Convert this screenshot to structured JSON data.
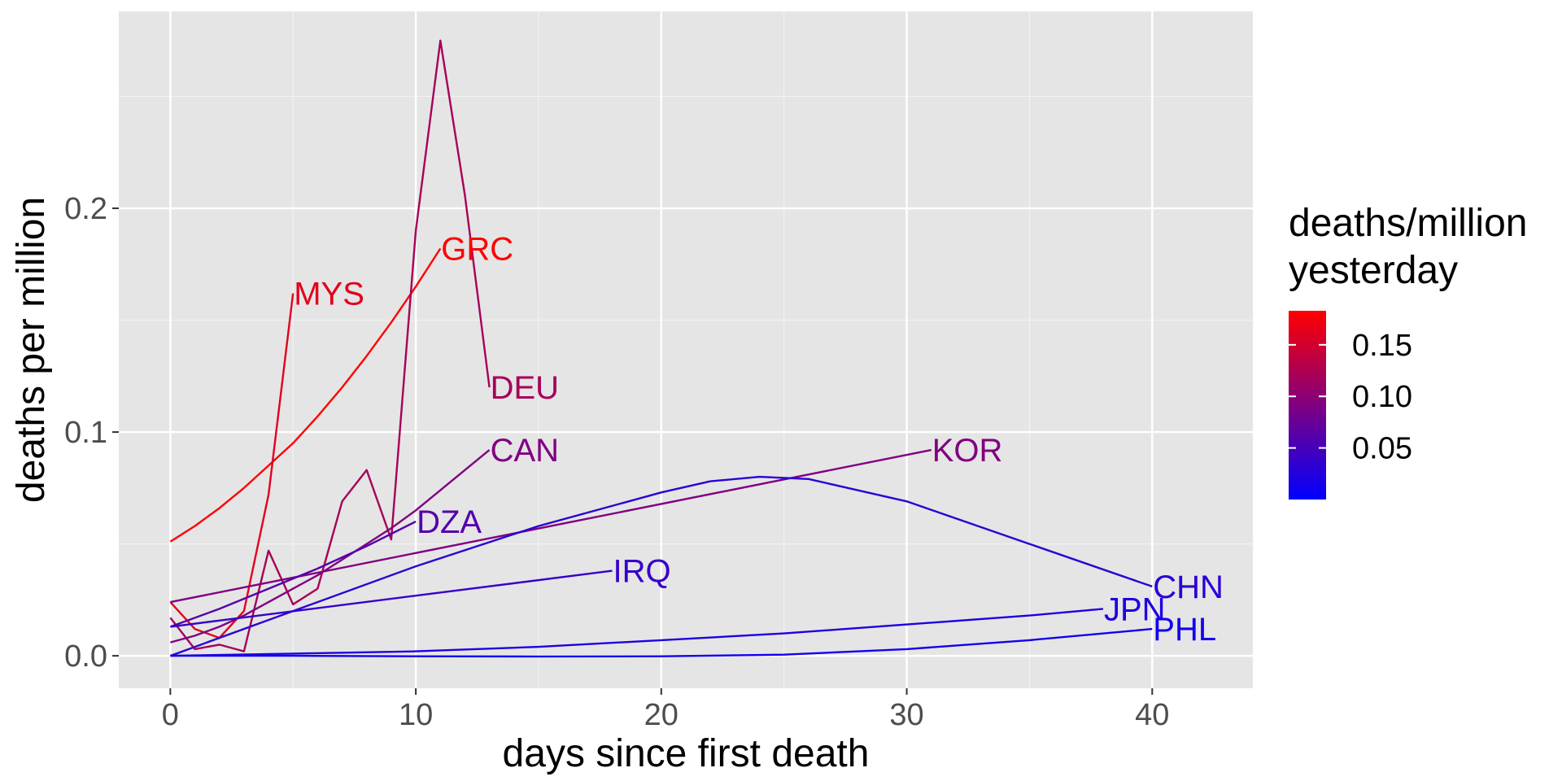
{
  "chart_data": {
    "type": "line",
    "xlabel": "days since first death",
    "ylabel": "deaths per million",
    "xlim": [
      -2.1,
      44.1
    ],
    "ylim": [
      -0.0145,
      0.288
    ],
    "x_ticks": [
      0,
      10,
      20,
      30,
      40
    ],
    "x_tick_labels": [
      "0",
      "10",
      "20",
      "30",
      "40"
    ],
    "y_ticks": [
      0.0,
      0.1,
      0.2
    ],
    "y_tick_labels": [
      "0.0",
      "0.1",
      "0.2"
    ],
    "grid": true,
    "background": "#e5e5e5",
    "legend": {
      "title_lines": [
        "deaths/million",
        "yesterday"
      ],
      "position": "right",
      "colorbar": {
        "min": 0.0,
        "max": 0.183,
        "low_color": "#0000ff",
        "high_color": "#ff0000",
        "ticks": [
          0.05,
          0.1,
          0.15
        ],
        "tick_labels": [
          "0.05",
          "0.10",
          "0.15"
        ]
      }
    },
    "series": [
      {
        "name": "GRC",
        "color_value": 0.182,
        "x": [
          0,
          1,
          2,
          3,
          4,
          5,
          6,
          7,
          8,
          9,
          10,
          11
        ],
        "y": [
          0.051,
          0.058,
          0.066,
          0.075,
          0.085,
          0.095,
          0.107,
          0.12,
          0.134,
          0.149,
          0.165,
          0.182
        ]
      },
      {
        "name": "MYS",
        "color_value": 0.162,
        "x": [
          0,
          1,
          2,
          3,
          4,
          5
        ],
        "y": [
          0.024,
          0.012,
          0.008,
          0.02,
          0.072,
          0.162
        ]
      },
      {
        "name": "DEU",
        "color_value": 0.12,
        "x": [
          0,
          1,
          2,
          3,
          4,
          5,
          6,
          7,
          8,
          9,
          10,
          11,
          12,
          13
        ],
        "y": [
          0.017,
          0.003,
          0.005,
          0.002,
          0.047,
          0.023,
          0.03,
          0.069,
          0.083,
          0.052,
          0.19,
          0.275,
          0.206,
          0.12
        ]
      },
      {
        "name": "CAN",
        "color_value": 0.092,
        "x": [
          0,
          1,
          2,
          3,
          4,
          5,
          6,
          7,
          8,
          9,
          10,
          11,
          12,
          13
        ],
        "y": [
          0.006,
          0.009,
          0.013,
          0.018,
          0.024,
          0.03,
          0.036,
          0.043,
          0.05,
          0.057,
          0.065,
          0.074,
          0.083,
          0.092
        ]
      },
      {
        "name": "KOR",
        "color_value": 0.092,
        "x": [
          0,
          31
        ],
        "y": [
          0.024,
          0.092
        ]
      },
      {
        "name": "DZA",
        "color_value": 0.06,
        "x": [
          0,
          2,
          4,
          6,
          8,
          10
        ],
        "y": [
          0.013,
          0.021,
          0.03,
          0.039,
          0.049,
          0.06
        ]
      },
      {
        "name": "IRQ",
        "color_value": 0.038,
        "x": [
          0,
          18
        ],
        "y": [
          0.013,
          0.038
        ]
      },
      {
        "name": "CHN",
        "color_value": 0.031,
        "x": [
          0,
          5,
          10,
          15,
          20,
          22,
          24,
          26,
          30,
          35,
          40
        ],
        "y": [
          0.0,
          0.02,
          0.04,
          0.058,
          0.073,
          0.078,
          0.08,
          0.079,
          0.069,
          0.05,
          0.031
        ]
      },
      {
        "name": "JPN",
        "color_value": 0.021,
        "x": [
          0,
          5,
          10,
          15,
          20,
          25,
          30,
          35,
          38
        ],
        "y": [
          0.0,
          0.001,
          0.002,
          0.004,
          0.007,
          0.01,
          0.014,
          0.018,
          0.021
        ]
      },
      {
        "name": "PHL",
        "color_value": 0.012,
        "x": [
          0,
          5,
          10,
          15,
          20,
          25,
          30,
          35,
          40
        ],
        "y": [
          0.0,
          0.0,
          -0.0002,
          -0.0003,
          -0.0002,
          0.0005,
          0.003,
          0.007,
          0.012
        ]
      }
    ]
  }
}
